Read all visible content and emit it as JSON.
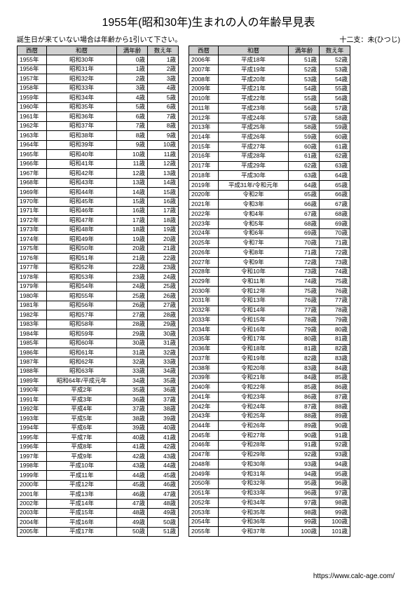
{
  "title": "1955年(昭和30年)生まれの人の年齢早見表",
  "subtitle_left": "誕生日が来ていない場合は年齢から1引いて下さい。",
  "subtitle_right": "十二支：未(ひつじ)",
  "columns": {
    "west": "西暦",
    "wareki": "和暦",
    "man": "満年齢",
    "kazoe": "数え年"
  },
  "rows_left": [
    {
      "w": "1955年",
      "j": "昭和30年",
      "m": "0歳",
      "k": "1歳"
    },
    {
      "w": "1956年",
      "j": "昭和31年",
      "m": "1歳",
      "k": "2歳"
    },
    {
      "w": "1957年",
      "j": "昭和32年",
      "m": "2歳",
      "k": "3歳"
    },
    {
      "w": "1958年",
      "j": "昭和33年",
      "m": "3歳",
      "k": "4歳"
    },
    {
      "w": "1959年",
      "j": "昭和34年",
      "m": "4歳",
      "k": "5歳"
    },
    {
      "w": "1960年",
      "j": "昭和35年",
      "m": "5歳",
      "k": "6歳"
    },
    {
      "w": "1961年",
      "j": "昭和36年",
      "m": "6歳",
      "k": "7歳"
    },
    {
      "w": "1962年",
      "j": "昭和37年",
      "m": "7歳",
      "k": "8歳"
    },
    {
      "w": "1963年",
      "j": "昭和38年",
      "m": "8歳",
      "k": "9歳"
    },
    {
      "w": "1964年",
      "j": "昭和39年",
      "m": "9歳",
      "k": "10歳"
    },
    {
      "w": "1965年",
      "j": "昭和40年",
      "m": "10歳",
      "k": "11歳"
    },
    {
      "w": "1966年",
      "j": "昭和41年",
      "m": "11歳",
      "k": "12歳"
    },
    {
      "w": "1967年",
      "j": "昭和42年",
      "m": "12歳",
      "k": "13歳"
    },
    {
      "w": "1968年",
      "j": "昭和43年",
      "m": "13歳",
      "k": "14歳"
    },
    {
      "w": "1969年",
      "j": "昭和44年",
      "m": "14歳",
      "k": "15歳"
    },
    {
      "w": "1970年",
      "j": "昭和45年",
      "m": "15歳",
      "k": "16歳"
    },
    {
      "w": "1971年",
      "j": "昭和46年",
      "m": "16歳",
      "k": "17歳"
    },
    {
      "w": "1972年",
      "j": "昭和47年",
      "m": "17歳",
      "k": "18歳"
    },
    {
      "w": "1973年",
      "j": "昭和48年",
      "m": "18歳",
      "k": "19歳"
    },
    {
      "w": "1974年",
      "j": "昭和49年",
      "m": "19歳",
      "k": "20歳"
    },
    {
      "w": "1975年",
      "j": "昭和50年",
      "m": "20歳",
      "k": "21歳"
    },
    {
      "w": "1976年",
      "j": "昭和51年",
      "m": "21歳",
      "k": "22歳"
    },
    {
      "w": "1977年",
      "j": "昭和52年",
      "m": "22歳",
      "k": "23歳"
    },
    {
      "w": "1978年",
      "j": "昭和53年",
      "m": "23歳",
      "k": "24歳"
    },
    {
      "w": "1979年",
      "j": "昭和54年",
      "m": "24歳",
      "k": "25歳"
    },
    {
      "w": "1980年",
      "j": "昭和55年",
      "m": "25歳",
      "k": "26歳"
    },
    {
      "w": "1981年",
      "j": "昭和56年",
      "m": "26歳",
      "k": "27歳"
    },
    {
      "w": "1982年",
      "j": "昭和57年",
      "m": "27歳",
      "k": "28歳"
    },
    {
      "w": "1983年",
      "j": "昭和58年",
      "m": "28歳",
      "k": "29歳"
    },
    {
      "w": "1984年",
      "j": "昭和59年",
      "m": "29歳",
      "k": "30歳"
    },
    {
      "w": "1985年",
      "j": "昭和60年",
      "m": "30歳",
      "k": "31歳"
    },
    {
      "w": "1986年",
      "j": "昭和61年",
      "m": "31歳",
      "k": "32歳"
    },
    {
      "w": "1987年",
      "j": "昭和62年",
      "m": "32歳",
      "k": "33歳"
    },
    {
      "w": "1988年",
      "j": "昭和63年",
      "m": "33歳",
      "k": "34歳"
    },
    {
      "w": "1989年",
      "j": "昭和64年/平成元年",
      "m": "34歳",
      "k": "35歳"
    },
    {
      "w": "1990年",
      "j": "平成2年",
      "m": "35歳",
      "k": "36歳"
    },
    {
      "w": "1991年",
      "j": "平成3年",
      "m": "36歳",
      "k": "37歳"
    },
    {
      "w": "1992年",
      "j": "平成4年",
      "m": "37歳",
      "k": "38歳"
    },
    {
      "w": "1993年",
      "j": "平成5年",
      "m": "38歳",
      "k": "39歳"
    },
    {
      "w": "1994年",
      "j": "平成6年",
      "m": "39歳",
      "k": "40歳"
    },
    {
      "w": "1995年",
      "j": "平成7年",
      "m": "40歳",
      "k": "41歳"
    },
    {
      "w": "1996年",
      "j": "平成8年",
      "m": "41歳",
      "k": "42歳"
    },
    {
      "w": "1997年",
      "j": "平成9年",
      "m": "42歳",
      "k": "43歳"
    },
    {
      "w": "1998年",
      "j": "平成10年",
      "m": "43歳",
      "k": "44歳"
    },
    {
      "w": "1999年",
      "j": "平成11年",
      "m": "44歳",
      "k": "45歳"
    },
    {
      "w": "2000年",
      "j": "平成12年",
      "m": "45歳",
      "k": "46歳"
    },
    {
      "w": "2001年",
      "j": "平成13年",
      "m": "46歳",
      "k": "47歳"
    },
    {
      "w": "2002年",
      "j": "平成14年",
      "m": "47歳",
      "k": "48歳"
    },
    {
      "w": "2003年",
      "j": "平成15年",
      "m": "48歳",
      "k": "49歳"
    },
    {
      "w": "2004年",
      "j": "平成16年",
      "m": "49歳",
      "k": "50歳"
    },
    {
      "w": "2005年",
      "j": "平成17年",
      "m": "50歳",
      "k": "51歳"
    }
  ],
  "rows_right": [
    {
      "w": "2006年",
      "j": "平成18年",
      "m": "51歳",
      "k": "52歳"
    },
    {
      "w": "2007年",
      "j": "平成19年",
      "m": "52歳",
      "k": "53歳"
    },
    {
      "w": "2008年",
      "j": "平成20年",
      "m": "53歳",
      "k": "54歳"
    },
    {
      "w": "2009年",
      "j": "平成21年",
      "m": "54歳",
      "k": "55歳"
    },
    {
      "w": "2010年",
      "j": "平成22年",
      "m": "55歳",
      "k": "56歳"
    },
    {
      "w": "2011年",
      "j": "平成23年",
      "m": "56歳",
      "k": "57歳"
    },
    {
      "w": "2012年",
      "j": "平成24年",
      "m": "57歳",
      "k": "58歳"
    },
    {
      "w": "2013年",
      "j": "平成25年",
      "m": "58歳",
      "k": "59歳"
    },
    {
      "w": "2014年",
      "j": "平成26年",
      "m": "59歳",
      "k": "60歳"
    },
    {
      "w": "2015年",
      "j": "平成27年",
      "m": "60歳",
      "k": "61歳"
    },
    {
      "w": "2016年",
      "j": "平成28年",
      "m": "61歳",
      "k": "62歳"
    },
    {
      "w": "2017年",
      "j": "平成29年",
      "m": "62歳",
      "k": "63歳"
    },
    {
      "w": "2018年",
      "j": "平成30年",
      "m": "63歳",
      "k": "64歳"
    },
    {
      "w": "2019年",
      "j": "平成31年/令和元年",
      "m": "64歳",
      "k": "65歳"
    },
    {
      "w": "2020年",
      "j": "令和2年",
      "m": "65歳",
      "k": "66歳"
    },
    {
      "w": "2021年",
      "j": "令和3年",
      "m": "66歳",
      "k": "67歳"
    },
    {
      "w": "2022年",
      "j": "令和4年",
      "m": "67歳",
      "k": "68歳"
    },
    {
      "w": "2023年",
      "j": "令和5年",
      "m": "68歳",
      "k": "69歳"
    },
    {
      "w": "2024年",
      "j": "令和6年",
      "m": "69歳",
      "k": "70歳"
    },
    {
      "w": "2025年",
      "j": "令和7年",
      "m": "70歳",
      "k": "71歳"
    },
    {
      "w": "2026年",
      "j": "令和8年",
      "m": "71歳",
      "k": "72歳"
    },
    {
      "w": "2027年",
      "j": "令和9年",
      "m": "72歳",
      "k": "73歳"
    },
    {
      "w": "2028年",
      "j": "令和10年",
      "m": "73歳",
      "k": "74歳"
    },
    {
      "w": "2029年",
      "j": "令和11年",
      "m": "74歳",
      "k": "75歳"
    },
    {
      "w": "2030年",
      "j": "令和12年",
      "m": "75歳",
      "k": "76歳"
    },
    {
      "w": "2031年",
      "j": "令和13年",
      "m": "76歳",
      "k": "77歳"
    },
    {
      "w": "2032年",
      "j": "令和14年",
      "m": "77歳",
      "k": "78歳"
    },
    {
      "w": "2033年",
      "j": "令和15年",
      "m": "78歳",
      "k": "79歳"
    },
    {
      "w": "2034年",
      "j": "令和16年",
      "m": "79歳",
      "k": "80歳"
    },
    {
      "w": "2035年",
      "j": "令和17年",
      "m": "80歳",
      "k": "81歳"
    },
    {
      "w": "2036年",
      "j": "令和18年",
      "m": "81歳",
      "k": "82歳"
    },
    {
      "w": "2037年",
      "j": "令和19年",
      "m": "82歳",
      "k": "83歳"
    },
    {
      "w": "2038年",
      "j": "令和20年",
      "m": "83歳",
      "k": "84歳"
    },
    {
      "w": "2039年",
      "j": "令和21年",
      "m": "84歳",
      "k": "85歳"
    },
    {
      "w": "2040年",
      "j": "令和22年",
      "m": "85歳",
      "k": "86歳"
    },
    {
      "w": "2041年",
      "j": "令和23年",
      "m": "86歳",
      "k": "87歳"
    },
    {
      "w": "2042年",
      "j": "令和24年",
      "m": "87歳",
      "k": "88歳"
    },
    {
      "w": "2043年",
      "j": "令和25年",
      "m": "88歳",
      "k": "89歳"
    },
    {
      "w": "2044年",
      "j": "令和26年",
      "m": "89歳",
      "k": "90歳"
    },
    {
      "w": "2045年",
      "j": "令和27年",
      "m": "90歳",
      "k": "91歳"
    },
    {
      "w": "2046年",
      "j": "令和28年",
      "m": "91歳",
      "k": "92歳"
    },
    {
      "w": "2047年",
      "j": "令和29年",
      "m": "92歳",
      "k": "93歳"
    },
    {
      "w": "2048年",
      "j": "令和30年",
      "m": "93歳",
      "k": "94歳"
    },
    {
      "w": "2049年",
      "j": "令和31年",
      "m": "94歳",
      "k": "95歳"
    },
    {
      "w": "2050年",
      "j": "令和32年",
      "m": "95歳",
      "k": "96歳"
    },
    {
      "w": "2051年",
      "j": "令和33年",
      "m": "96歳",
      "k": "97歳"
    },
    {
      "w": "2052年",
      "j": "令和34年",
      "m": "97歳",
      "k": "98歳"
    },
    {
      "w": "2053年",
      "j": "令和35年",
      "m": "98歳",
      "k": "99歳"
    },
    {
      "w": "2054年",
      "j": "令和36年",
      "m": "99歳",
      "k": "100歳"
    },
    {
      "w": "2055年",
      "j": "令和37年",
      "m": "100歳",
      "k": "101歳"
    }
  ],
  "footer_url": "https://www.calc-age.com/"
}
